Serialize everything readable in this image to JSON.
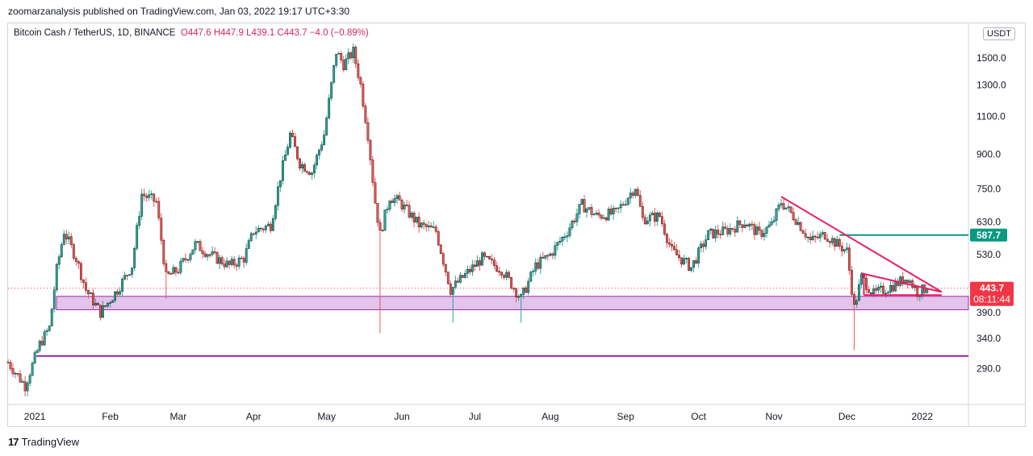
{
  "header": {
    "publish_text": "zoomarzanalysis published on TradingView.com, Jan 03, 2022 19:17 UTC+3:30"
  },
  "legend": {
    "symbol": "Bitcoin Cash / TetherUS, 1D, BINANCE",
    "o": "O447.6",
    "h": "H447.9",
    "l": "L439.1",
    "c": "C443.7",
    "chg": "−4.0 (−0.89%)"
  },
  "currency": "USDT",
  "footer": {
    "logo": "17",
    "brand": "TradingView"
  },
  "colors": {
    "up": "#26a69a",
    "down": "#ef5350",
    "candle_body": "#0b0b0b",
    "trendline": "#e91e63",
    "resistance": "#089981",
    "support_band": "#ce93d8",
    "support_line": "#9c27b0",
    "price_tag": "#f23645"
  },
  "chart_data": {
    "type": "candlestick",
    "title": "Bitcoin Cash / TetherUS, 1D, BINANCE",
    "y_scale": "log",
    "ylim": [
      240,
      1800
    ],
    "y_ticks": [
      "1500.0",
      "1300.0",
      "1100.0",
      "900.0",
      "750.0",
      "630.0",
      "530.0",
      "390.0",
      "340.0",
      "290.0"
    ],
    "y_tick_values": [
      1500,
      1300,
      1100,
      900,
      750,
      630,
      530,
      390,
      340,
      290
    ],
    "x_ticks": [
      "2021",
      "Feb",
      "Mar",
      "Apr",
      "May",
      "Jun",
      "Jul",
      "Aug",
      "Sep",
      "Oct",
      "Nov",
      "Dec",
      "2022"
    ],
    "x_range": [
      "2020-12-21",
      "2022-01-20"
    ],
    "x_tick_dates": [
      "2021-01-01",
      "2021-02-01",
      "2021-03-01",
      "2021-04-01",
      "2021-05-01",
      "2021-06-01",
      "2021-07-01",
      "2021-08-01",
      "2021-09-01",
      "2021-10-01",
      "2021-11-01",
      "2021-12-01",
      "2022-01-01"
    ],
    "price_path": [
      [
        "2020-12-21",
        300
      ],
      [
        "2020-12-28",
        265
      ],
      [
        "2021-01-03",
        330
      ],
      [
        "2021-01-07",
        360
      ],
      [
        "2021-01-10",
        490
      ],
      [
        "2021-01-13",
        600
      ],
      [
        "2021-01-18",
        520
      ],
      [
        "2021-01-22",
        440
      ],
      [
        "2021-01-28",
        390
      ],
      [
        "2021-02-04",
        440
      ],
      [
        "2021-02-10",
        500
      ],
      [
        "2021-02-14",
        730
      ],
      [
        "2021-02-20",
        700
      ],
      [
        "2021-02-24",
        470
      ],
      [
        "2021-03-01",
        490
      ],
      [
        "2021-03-08",
        560
      ],
      [
        "2021-03-14",
        530
      ],
      [
        "2021-03-22",
        500
      ],
      [
        "2021-03-28",
        520
      ],
      [
        "2021-04-01",
        600
      ],
      [
        "2021-04-08",
        620
      ],
      [
        "2021-04-12",
        800
      ],
      [
        "2021-04-16",
        1000
      ],
      [
        "2021-04-20",
        860
      ],
      [
        "2021-04-25",
        820
      ],
      [
        "2021-04-30",
        1000
      ],
      [
        "2021-05-05",
        1550
      ],
      [
        "2021-05-08",
        1450
      ],
      [
        "2021-05-12",
        1550
      ],
      [
        "2021-05-15",
        1300
      ],
      [
        "2021-05-18",
        1000
      ],
      [
        "2021-05-21",
        700
      ],
      [
        "2021-05-23",
        590
      ],
      [
        "2021-05-27",
        720
      ],
      [
        "2021-05-31",
        700
      ],
      [
        "2021-06-08",
        620
      ],
      [
        "2021-06-15",
        600
      ],
      [
        "2021-06-21",
        440
      ],
      [
        "2021-06-26",
        470
      ],
      [
        "2021-07-04",
        520
      ],
      [
        "2021-07-12",
        490
      ],
      [
        "2021-07-20",
        420
      ],
      [
        "2021-07-26",
        500
      ],
      [
        "2021-08-01",
        530
      ],
      [
        "2021-08-08",
        600
      ],
      [
        "2021-08-14",
        690
      ],
      [
        "2021-08-20",
        650
      ],
      [
        "2021-08-28",
        660
      ],
      [
        "2021-09-05",
        760
      ],
      [
        "2021-09-08",
        640
      ],
      [
        "2021-09-15",
        650
      ],
      [
        "2021-09-20",
        540
      ],
      [
        "2021-09-28",
        495
      ],
      [
        "2021-10-05",
        590
      ],
      [
        "2021-10-12",
        600
      ],
      [
        "2021-10-20",
        630
      ],
      [
        "2021-10-26",
        590
      ],
      [
        "2021-10-31",
        620
      ],
      [
        "2021-11-04",
        700
      ],
      [
        "2021-11-10",
        640
      ],
      [
        "2021-11-16",
        570
      ],
      [
        "2021-11-22",
        590
      ],
      [
        "2021-11-27",
        560
      ],
      [
        "2021-12-01",
        540
      ],
      [
        "2021-12-04",
        400
      ],
      [
        "2021-12-07",
        470
      ],
      [
        "2021-12-12",
        430
      ],
      [
        "2021-12-20",
        450
      ],
      [
        "2021-12-26",
        470
      ],
      [
        "2021-12-30",
        435
      ],
      [
        "2022-01-03",
        443.7
      ]
    ],
    "wicks": [
      [
        "2021-05-23",
        350
      ],
      [
        "2021-06-22",
        370
      ],
      [
        "2021-07-20",
        370
      ],
      [
        "2021-12-04",
        320
      ],
      [
        "2021-02-24",
        420
      ]
    ],
    "last_price": "443.7",
    "countdown": "08:11:44",
    "resistance_label": "587.7",
    "annotations": {
      "support_zone": [
        396,
        425
      ],
      "support_line": 310,
      "resistance_line": {
        "from": "2021-11-28",
        "to": "2022-01-20",
        "price": 587.7
      },
      "descending_trendline": {
        "from": [
          "2021-11-04",
          720
        ],
        "to": [
          "2022-01-05",
          435
        ]
      },
      "inner_triangle_top": {
        "from": [
          "2021-12-07",
          480
        ],
        "to": [
          "2022-01-05",
          435
        ]
      },
      "inner_triangle_base": {
        "from": [
          "2021-12-08",
          428
        ],
        "to": [
          "2022-01-05",
          428
        ]
      }
    }
  }
}
